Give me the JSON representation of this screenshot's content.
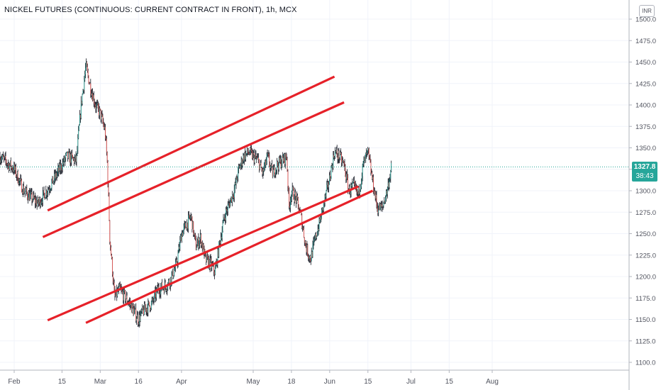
{
  "title": "NICKEL FUTURES (CONTINUOUS: CURRENT CONTRACT IN FRONT), 1h, MCX",
  "currency_label": "INR",
  "last_price_label": "1327.8",
  "countdown_label": "38:43",
  "colors": {
    "up": "#26a69a",
    "down": "#ef5350",
    "candle": "#131722",
    "channel": "#e62129",
    "grid": "#f0f3fa",
    "axis_text": "#50535e"
  },
  "chart_data": {
    "type": "line",
    "title": "NICKEL FUTURES (CONTINUOUS: CURRENT CONTRACT IN FRONT), 1h, MCX",
    "xlabel": "",
    "ylabel": "",
    "ylim": [
      1090,
      1510
    ],
    "y_ticks": [
      "1100.0",
      "1125.0",
      "1150.0",
      "1175.0",
      "1200.0",
      "1225.0",
      "1250.0",
      "1275.0",
      "1300.0",
      "1325.0",
      "1350.0",
      "1375.0",
      "1400.0",
      "1425.0",
      "1450.0",
      "1475.0",
      "1500.0"
    ],
    "x_tick_labels": [
      "Feb",
      "15",
      "Mar",
      "16",
      "Apr",
      "May",
      "18",
      "Jun",
      "15",
      "Jul",
      "15",
      "Aug"
    ],
    "x_tick_index": [
      0,
      10,
      18,
      26,
      35,
      50,
      58,
      66,
      74,
      83,
      91,
      100
    ],
    "last_price": 1327.8,
    "price_path": {
      "index": [
        -3,
        0,
        2,
        5,
        8,
        10,
        11,
        13,
        14,
        15,
        16,
        17,
        18,
        19,
        19.5,
        20,
        21,
        22,
        24,
        26,
        27,
        28,
        29,
        30,
        32,
        33,
        34,
        35,
        37,
        38,
        39,
        40,
        41,
        42,
        43,
        44,
        46,
        47,
        48,
        49,
        50,
        51,
        52,
        53,
        54,
        55,
        56,
        57,
        57.5,
        58,
        59,
        60,
        61,
        62,
        63,
        64,
        65,
        66,
        67,
        68,
        69,
        70,
        71,
        72,
        73,
        74,
        75,
        76,
        77,
        78,
        79
      ],
      "value": [
        1340,
        1325,
        1300,
        1285,
        1310,
        1330,
        1340,
        1335,
        1400,
        1445,
        1420,
        1400,
        1390,
        1370,
        1330,
        1245,
        1175,
        1185,
        1170,
        1150,
        1160,
        1165,
        1170,
        1185,
        1190,
        1200,
        1215,
        1250,
        1270,
        1235,
        1245,
        1220,
        1215,
        1205,
        1240,
        1270,
        1300,
        1325,
        1340,
        1345,
        1340,
        1335,
        1320,
        1340,
        1320,
        1330,
        1335,
        1340,
        1280,
        1300,
        1290,
        1270,
        1235,
        1220,
        1245,
        1265,
        1290,
        1315,
        1345,
        1340,
        1330,
        1300,
        1305,
        1295,
        1330,
        1345,
        1310,
        1280,
        1280,
        1300,
        1330
      ]
    },
    "channel_lines": [
      {
        "x": [
          7,
          67
        ],
        "y": [
          1277,
          1433
        ]
      },
      {
        "x": [
          6,
          69
        ],
        "y": [
          1246,
          1403
        ]
      },
      {
        "x": [
          7,
          72
        ],
        "y": [
          1149,
          1305
        ]
      },
      {
        "x": [
          15,
          75
        ],
        "y": [
          1146,
          1300
        ]
      }
    ]
  }
}
